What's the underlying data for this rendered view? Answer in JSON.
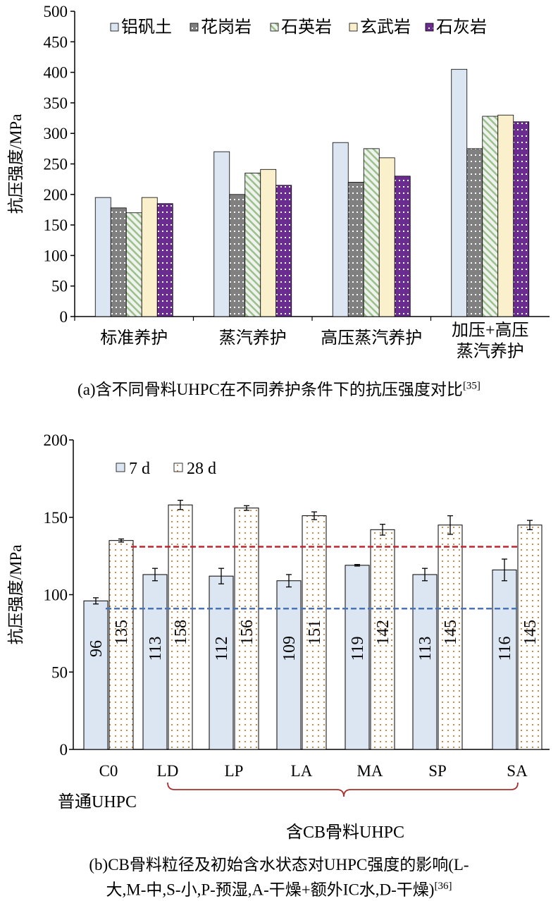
{
  "chart_data": [
    {
      "type": "bar",
      "ylabel": "抗压强度/MPa",
      "ylim": [
        0,
        500
      ],
      "yticks": [
        0,
        50,
        100,
        150,
        200,
        250,
        300,
        350,
        400,
        450,
        500
      ],
      "legend_position": "top",
      "categories": [
        "标准养护",
        "蒸汽养护",
        "高压蒸汽养护",
        [
          "加压+高压",
          "蒸汽养护"
        ]
      ],
      "series": [
        {
          "name": "铝矾土",
          "values": [
            195,
            270,
            285,
            405
          ]
        },
        {
          "name": "花岗岩",
          "values": [
            178,
            200,
            220,
            275
          ]
        },
        {
          "name": "石英岩",
          "values": [
            170,
            235,
            275,
            328
          ]
        },
        {
          "name": "玄武岩",
          "values": [
            195,
            241,
            260,
            330
          ]
        },
        {
          "name": "石灰岩",
          "values": [
            185,
            215,
            230,
            319
          ]
        }
      ],
      "caption": "(a)含不同骨料UHPC在不同养护条件下的抗压强度对比",
      "caption_ref": "[35]"
    },
    {
      "type": "bar",
      "ylabel": "抗压强度/MPa",
      "ylim": [
        0,
        200
      ],
      "yticks": [
        0,
        50,
        100,
        150,
        200
      ],
      "legend_position": "top-left",
      "categories": [
        "C0",
        "LD",
        "LP",
        "LA",
        "MA",
        "SP",
        "SA"
      ],
      "series": [
        {
          "name": "7 d",
          "values": [
            96,
            113,
            112,
            109,
            119,
            113,
            116
          ],
          "errors": [
            2,
            4,
            5,
            4,
            0.5,
            4,
            7
          ],
          "labels": [
            "96",
            "113",
            "112",
            "109",
            "119",
            "113",
            "116"
          ]
        },
        {
          "name": "28 d",
          "values": [
            135,
            158,
            156,
            151,
            142,
            145,
            145
          ],
          "errors": [
            1,
            3,
            1.5,
            2.5,
            3.5,
            6,
            3
          ],
          "labels": [
            "135",
            "158",
            "156",
            "151",
            "142",
            "145",
            "145"
          ]
        }
      ],
      "reference_lines": [
        {
          "value": 91,
          "color": "#4a74b4"
        },
        {
          "value": 131,
          "color": "#c0252d"
        }
      ],
      "group_labels": [
        "普通UHPC",
        "含CB骨料UHPC"
      ],
      "caption_lines": [
        "(b)CB骨料粒径及初始含水状态对UHPC强度的影响(L-",
        "大,M-中,S-小,P-预湿,A-干燥+额外IC水,D-干燥)"
      ],
      "caption_ref": "[36]"
    }
  ]
}
